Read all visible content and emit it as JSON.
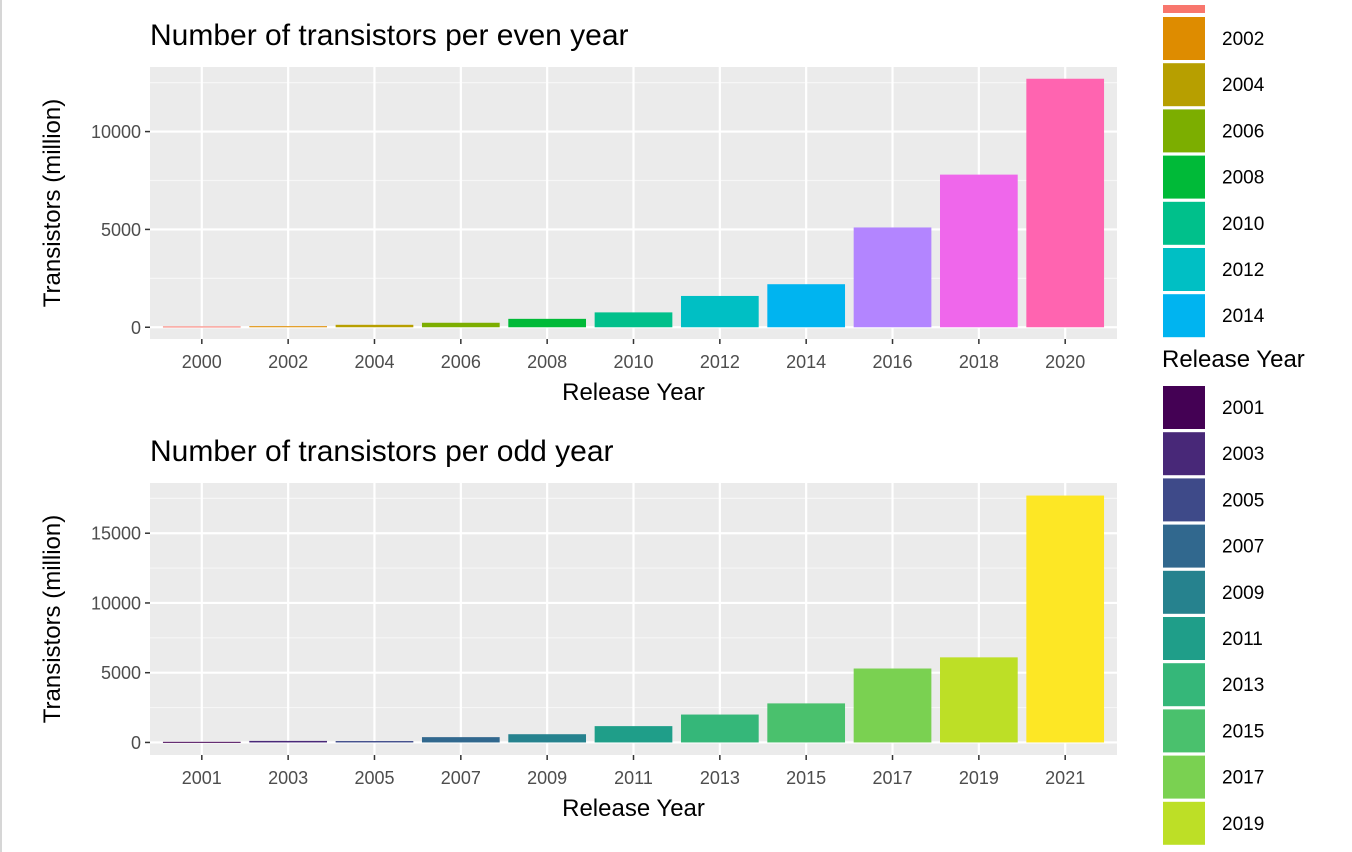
{
  "chart_data": [
    {
      "type": "bar",
      "title": "Number of transistors per even year",
      "xlabel": "Release Year",
      "ylabel": "Transistors (million)",
      "categories": [
        "2000",
        "2002",
        "2004",
        "2006",
        "2008",
        "2010",
        "2012",
        "2014",
        "2016",
        "2018",
        "2020"
      ],
      "values": [
        42,
        55,
        125,
        230,
        430,
        760,
        1600,
        2200,
        5100,
        7800,
        12700
      ],
      "colors": [
        "#F8766D",
        "#DE8C00",
        "#B79F00",
        "#7CAE00",
        "#00BA38",
        "#00C08B",
        "#00BFC4",
        "#00B4F0",
        "#B385FF",
        "#EF67EB",
        "#FF64B0"
      ],
      "ylim": [
        -600,
        13300
      ],
      "yticks": [
        0,
        5000,
        10000
      ],
      "legend_items": [
        "2002",
        "2004",
        "2006",
        "2008",
        "2010",
        "2012",
        "2014"
      ],
      "legend_colors": [
        "#DE8C00",
        "#B79F00",
        "#7CAE00",
        "#00BA38",
        "#00C08B",
        "#00BFC4",
        "#00B4F0"
      ],
      "legend_partial_color": "#F8766D"
    },
    {
      "type": "bar",
      "title": "Number of transistors per odd year",
      "xlabel": "Release Year",
      "ylabel": "Transistors (million)",
      "categories": [
        "2001",
        "2003",
        "2005",
        "2007",
        "2009",
        "2011",
        "2013",
        "2015",
        "2017",
        "2019",
        "2021"
      ],
      "values": [
        45,
        110,
        100,
        380,
        590,
        1170,
        2000,
        2800,
        5300,
        6100,
        17700
      ],
      "colors": [
        "#440154",
        "#482878",
        "#3E4A89",
        "#31688E",
        "#26828E",
        "#1F9E89",
        "#35B779",
        "#4AC16D",
        "#7AD151",
        "#BDDF26",
        "#FDE725"
      ],
      "ylim": [
        -900,
        18600
      ],
      "yticks": [
        0,
        5000,
        10000,
        15000
      ],
      "legend_title": "Release Year",
      "legend_items": [
        "2001",
        "2003",
        "2005",
        "2007",
        "2009",
        "2011",
        "2013",
        "2015",
        "2017",
        "2019"
      ],
      "legend_colors": [
        "#440154",
        "#482878",
        "#3E4A89",
        "#31688E",
        "#26828E",
        "#1F9E89",
        "#35B779",
        "#4AC16D",
        "#7AD151",
        "#BDDF26"
      ]
    }
  ]
}
